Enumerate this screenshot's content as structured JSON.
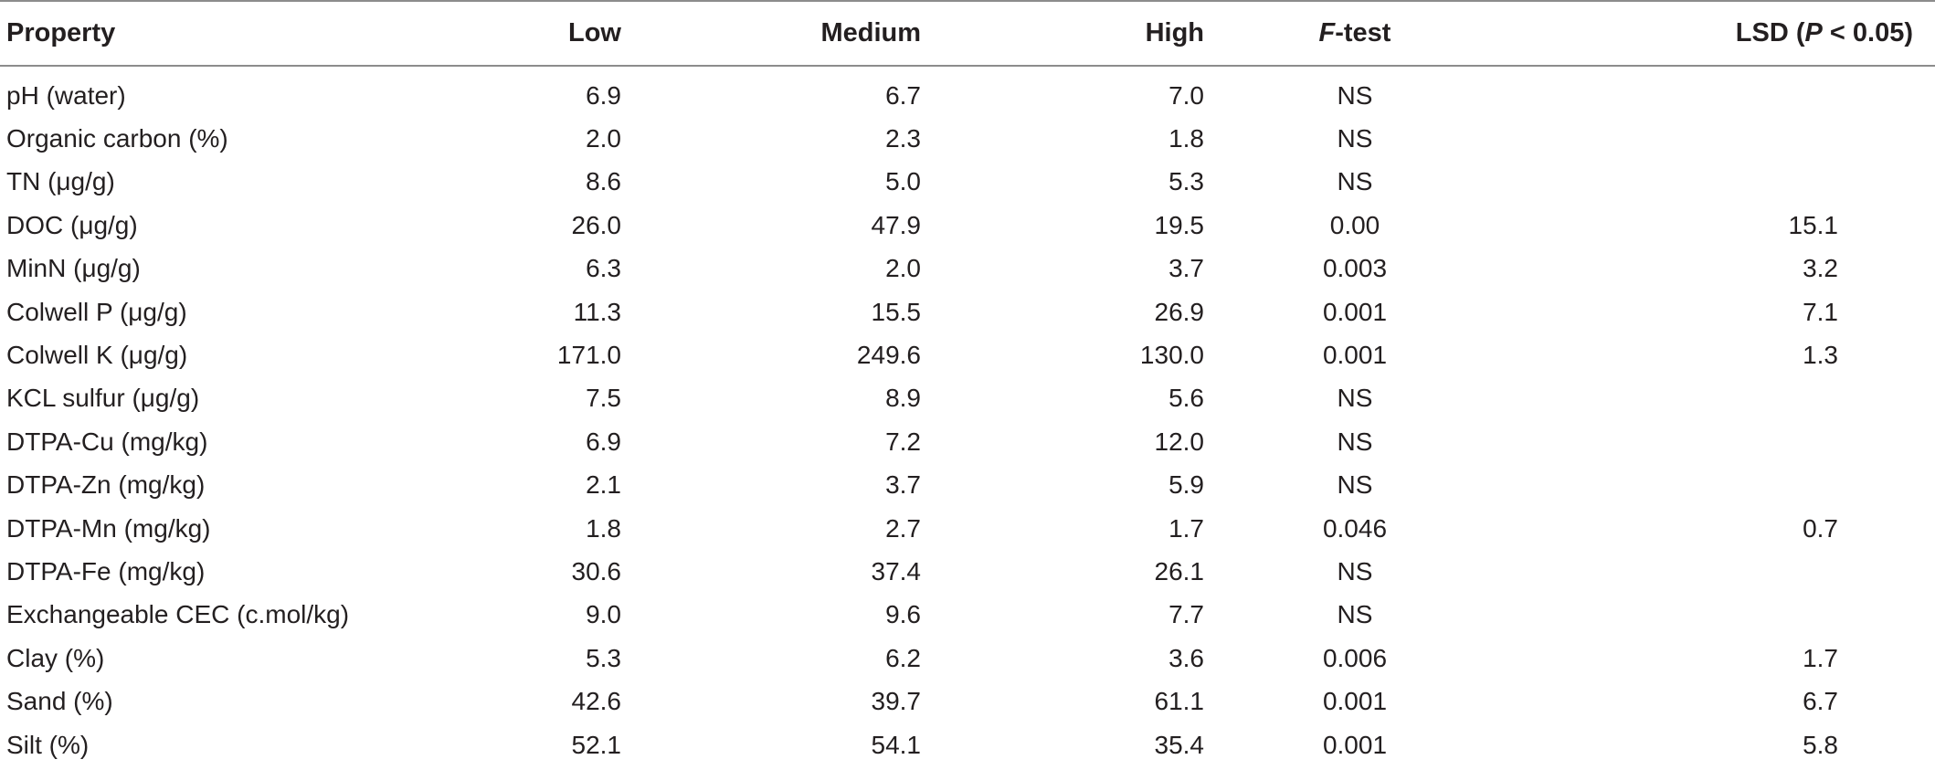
{
  "table": {
    "headers": {
      "property": "Property",
      "low": "Low",
      "medium": "Medium",
      "high": "High",
      "f_test_italic": "F",
      "f_test_rest": "-test",
      "lsd_pre": "LSD (",
      "lsd_p": "P",
      "lsd_post": " < 0.05)"
    },
    "rows": [
      {
        "property": "pH (water)",
        "low": "6.9",
        "medium": "6.7",
        "high": "7.0",
        "f_test": "NS",
        "lsd": ""
      },
      {
        "property": "Organic carbon (%)",
        "low": "2.0",
        "medium": "2.3",
        "high": "1.8",
        "f_test": "NS",
        "lsd": ""
      },
      {
        "property": "TN (μg/g)",
        "low": "8.6",
        "medium": "5.0",
        "high": "5.3",
        "f_test": "NS",
        "lsd": ""
      },
      {
        "property": "DOC (μg/g)",
        "low": "26.0",
        "medium": "47.9",
        "high": "19.5",
        "f_test": "0.00",
        "lsd": "15.1"
      },
      {
        "property": "MinN (μg/g)",
        "low": "6.3",
        "medium": "2.0",
        "high": "3.7",
        "f_test": "0.003",
        "lsd": "3.2"
      },
      {
        "property": "Colwell P (μg/g)",
        "low": "11.3",
        "medium": "15.5",
        "high": "26.9",
        "f_test": "0.001",
        "lsd": "7.1"
      },
      {
        "property": "Colwell K (μg/g)",
        "low": "171.0",
        "medium": "249.6",
        "high": "130.0",
        "f_test": "0.001",
        "lsd": "1.3"
      },
      {
        "property": "KCL sulfur (μg/g)",
        "low": "7.5",
        "medium": "8.9",
        "high": "5.6",
        "f_test": "NS",
        "lsd": ""
      },
      {
        "property": "DTPA-Cu (mg/kg)",
        "low": "6.9",
        "medium": "7.2",
        "high": "12.0",
        "f_test": "NS",
        "lsd": ""
      },
      {
        "property": "DTPA-Zn (mg/kg)",
        "low": "2.1",
        "medium": "3.7",
        "high": "5.9",
        "f_test": "NS",
        "lsd": ""
      },
      {
        "property": "DTPA-Mn (mg/kg)",
        "low": "1.8",
        "medium": "2.7",
        "high": "1.7",
        "f_test": "0.046",
        "lsd": "0.7"
      },
      {
        "property": "DTPA-Fe (mg/kg)",
        "low": "30.6",
        "medium": "37.4",
        "high": "26.1",
        "f_test": "NS",
        "lsd": ""
      },
      {
        "property": "Exchangeable CEC (c.mol/kg)",
        "low": "9.0",
        "medium": "9.6",
        "high": "7.7",
        "f_test": "NS",
        "lsd": ""
      },
      {
        "property": "Clay (%)",
        "low": "5.3",
        "medium": "6.2",
        "high": "3.6",
        "f_test": "0.006",
        "lsd": "1.7"
      },
      {
        "property": "Sand (%)",
        "low": "42.6",
        "medium": "39.7",
        "high": "61.1",
        "f_test": "0.001",
        "lsd": "6.7"
      },
      {
        "property": "Silt (%)",
        "low": "52.1",
        "medium": "54.1",
        "high": "35.4",
        "f_test": "0.001",
        "lsd": "5.8"
      }
    ]
  }
}
